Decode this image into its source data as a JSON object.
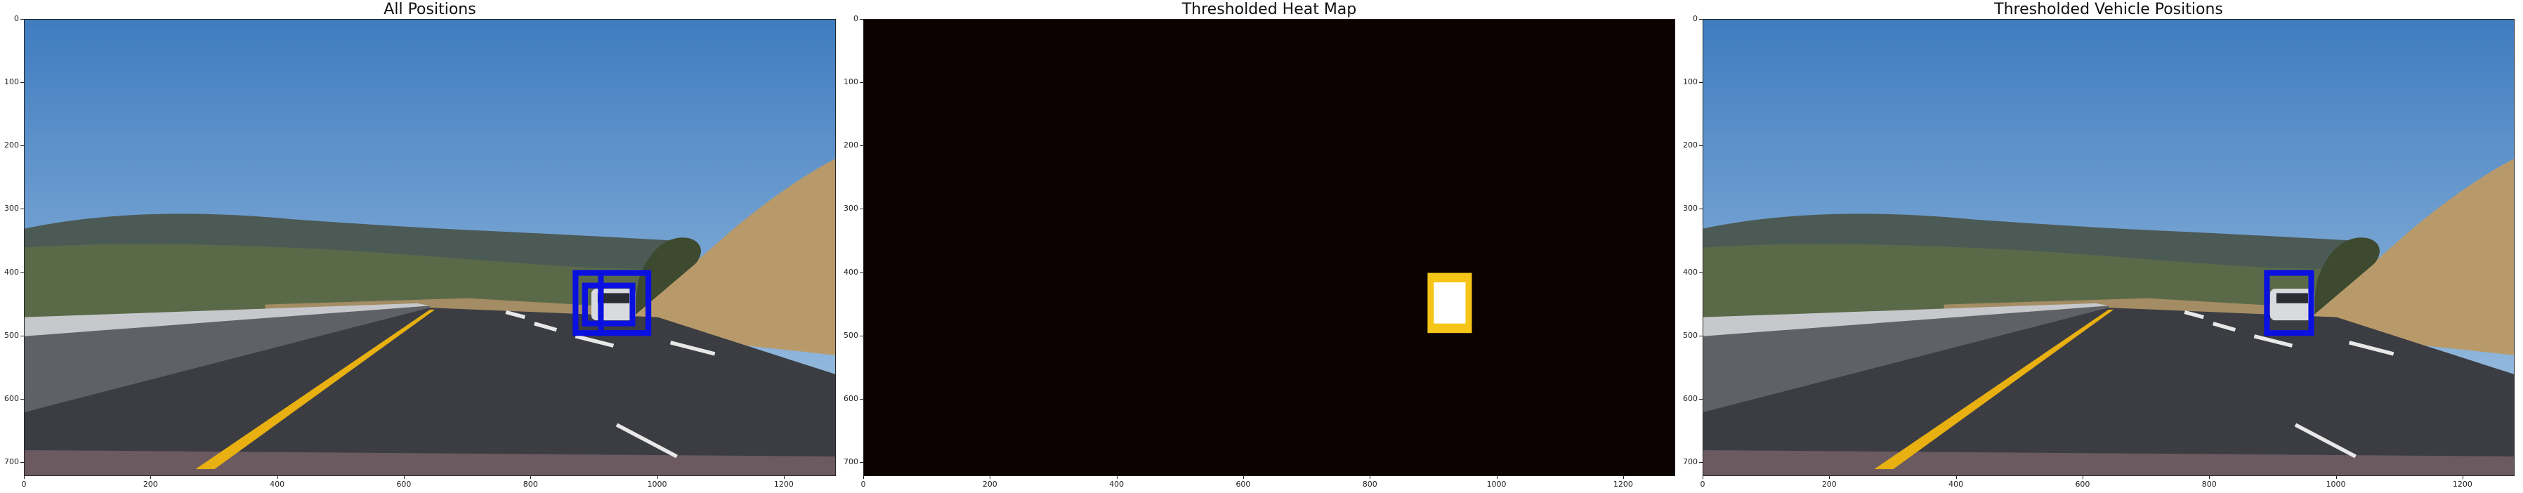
{
  "panels": [
    {
      "title": "All Positions",
      "kind": "road",
      "boxes": [
        [
          870,
          400,
          985,
          495
        ],
        [
          910,
          400,
          985,
          495
        ],
        [
          885,
          420,
          960,
          480
        ]
      ]
    },
    {
      "title": "Thresholded Heat Map",
      "kind": "heatmap",
      "heat": {
        "outer": [
          890,
          400,
          960,
          495
        ],
        "inner": [
          900,
          415,
          950,
          480
        ],
        "outer_color": "#f5c518",
        "inner_color": "#ffffff",
        "bg_color": "#0d0202"
      }
    },
    {
      "title": "Thresholded Vehicle Positions",
      "kind": "road",
      "boxes": [
        [
          890,
          400,
          960,
          495
        ]
      ]
    }
  ],
  "axes": {
    "x_ticks": [
      "0",
      "200",
      "400",
      "600",
      "800",
      "1000",
      "1200"
    ],
    "y_ticks": [
      "0",
      "100",
      "200",
      "300",
      "400",
      "500",
      "600",
      "700"
    ],
    "x_range": [
      0,
      1280
    ],
    "y_range": [
      720,
      0
    ]
  },
  "colors": {
    "box": "#0a10e0",
    "lane_yellow": "#e8b010",
    "sky_top": "#3f7cc0",
    "sky_bottom": "#a9c8e4"
  }
}
